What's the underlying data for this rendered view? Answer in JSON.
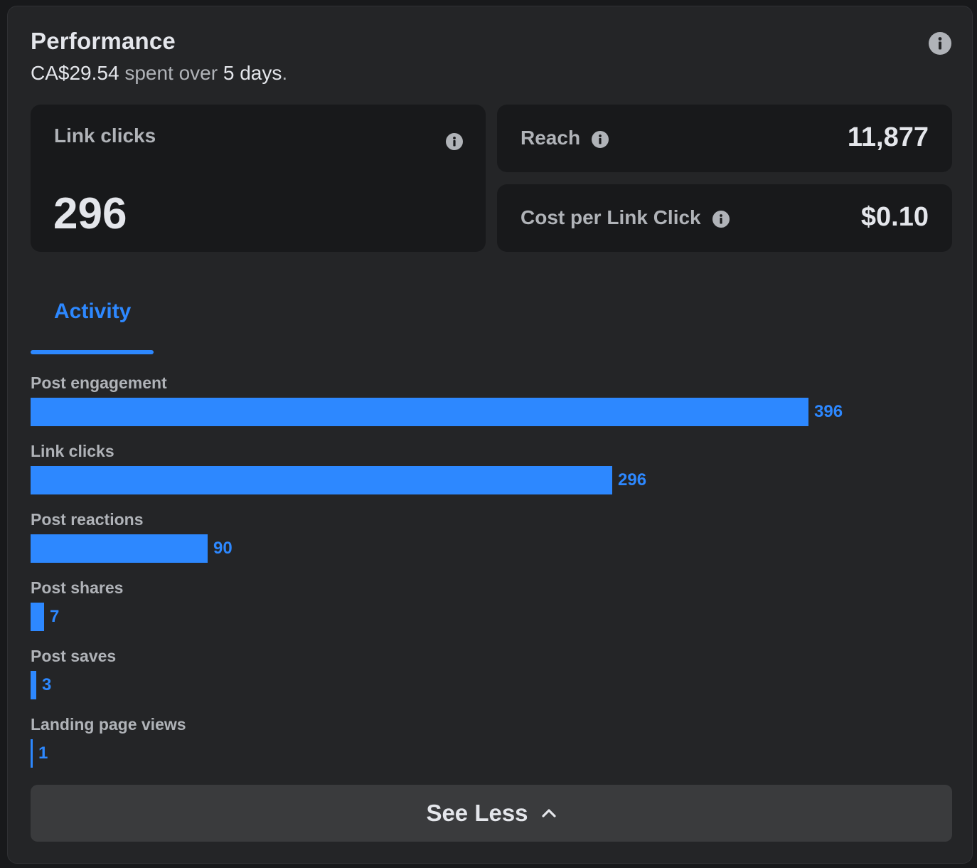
{
  "header": {
    "title": "Performance",
    "spend_amount": "CA$29.54",
    "spend_middle": " spent over ",
    "spend_days": "5 days",
    "spend_end": "."
  },
  "tiles": {
    "link_clicks": {
      "label": "Link clicks",
      "value": "296"
    },
    "reach": {
      "label": "Reach",
      "value": "11,877"
    },
    "cost_per_link_click": {
      "label": "Cost per Link Click",
      "value": "$0.10"
    }
  },
  "tabs": [
    {
      "label": "Activity",
      "active": true
    }
  ],
  "chart_data": {
    "type": "bar",
    "orientation": "horizontal",
    "categories": [
      "Post engagement",
      "Link clicks",
      "Post reactions",
      "Post shares",
      "Post saves",
      "Landing page views"
    ],
    "values": [
      396,
      296,
      90,
      7,
      3,
      1
    ],
    "value_labels": [
      "396",
      "296",
      "90",
      "7",
      "3",
      "1"
    ],
    "max": 469,
    "color": "#2d88ff"
  },
  "actions": {
    "see_less_label": "See Less"
  },
  "icons": {
    "info": "info-icon",
    "chevron": "chevron-up-icon"
  },
  "colors": {
    "accent": "#2d88ff",
    "background": "#242527",
    "tile_background": "#18191b",
    "button_background": "#3a3b3d"
  }
}
